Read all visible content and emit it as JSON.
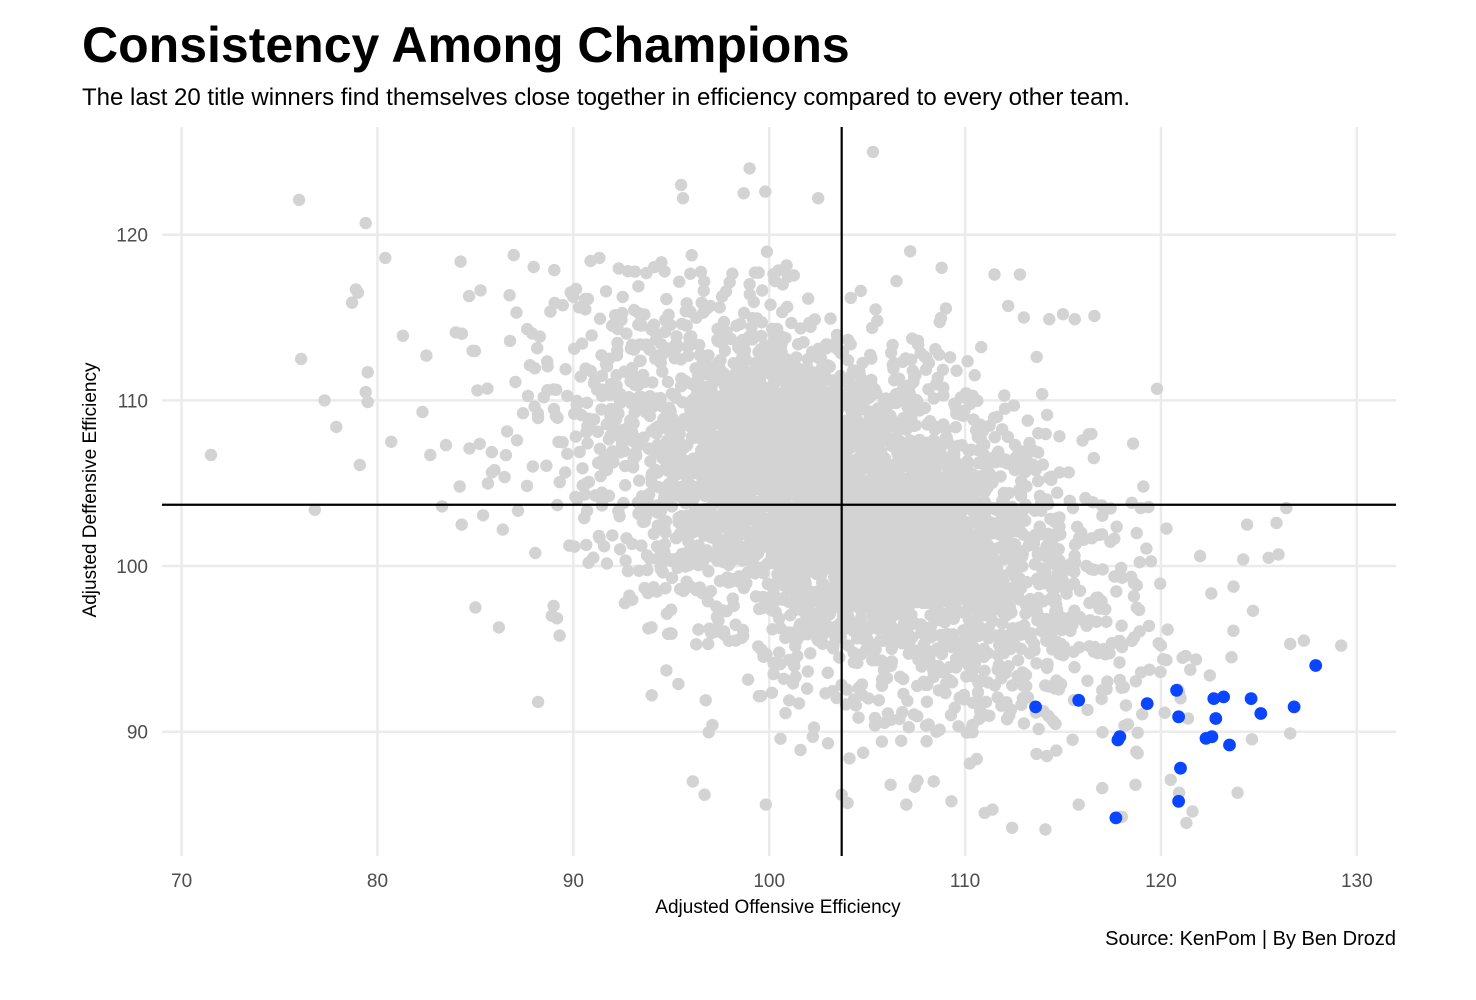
{
  "chart_data": {
    "type": "scatter",
    "title": "Consistency Among Champions",
    "subtitle": "The last 20 title winners find themselves close together in efficiency compared to every other team.",
    "caption": "Source: KenPom | By Ben Drozd",
    "xlabel": "Adjusted Offensive Efficiency",
    "ylabel": "Adjusted Deffensive Efficiency",
    "xlim": [
      69,
      132
    ],
    "ylim": [
      82.5,
      126.5
    ],
    "xticks": [
      70,
      80,
      90,
      100,
      110,
      120,
      130
    ],
    "yticks": [
      90,
      100,
      110,
      120
    ],
    "xtick_labels": [
      "70",
      "80",
      "90",
      "100",
      "110",
      "120",
      "130"
    ],
    "ytick_labels": [
      "90",
      "100",
      "110",
      "120"
    ],
    "reference_lines": {
      "vline_x": 103.7,
      "hline_y": 103.7
    },
    "grid": true,
    "legend": "none",
    "colors": {
      "other_teams": "#d3d3d3",
      "champions": "#0a46ff",
      "reference_lines": "#000000",
      "grid": "#ebebeb"
    },
    "series": [
      {
        "points": [
          [
            71.5,
            106.7
          ],
          [
            76.0,
            122.1
          ],
          [
            76.1,
            112.5
          ],
          [
            76.8,
            103.4
          ],
          [
            77.3,
            110.0
          ],
          [
            77.9,
            108.4
          ],
          [
            78.7,
            115.9
          ],
          [
            78.9,
            116.7
          ],
          [
            79.0,
            116.5
          ],
          [
            79.1,
            106.1
          ],
          [
            79.4,
            120.7
          ],
          [
            79.5,
            111.7
          ],
          [
            79.4,
            110.5
          ],
          [
            79.5,
            109.9
          ],
          [
            80.4,
            118.6
          ],
          [
            80.7,
            107.5
          ],
          [
            81.3,
            113.9
          ],
          [
            82.3,
            109.3
          ],
          [
            82.5,
            112.7
          ],
          [
            82.7,
            106.7
          ],
          [
            83.3,
            103.6
          ],
          [
            83.5,
            107.3
          ],
          [
            84.0,
            114.1
          ],
          [
            84.3,
            102.5
          ],
          [
            84.2,
            104.8
          ],
          [
            84.7,
            107.1
          ],
          [
            85.1,
            110.6
          ],
          [
            85.0,
            97.5
          ],
          [
            86.2,
            96.3
          ],
          [
            86.4,
            102.2
          ],
          [
            87.1,
            115.3
          ],
          [
            88.2,
            91.8
          ],
          [
            88.9,
            97.0
          ],
          [
            89.3,
            95.8
          ],
          [
            94.0,
            92.2
          ],
          [
            95.5,
            123.0
          ],
          [
            95.6,
            122.2
          ],
          [
            96.1,
            87.0
          ],
          [
            96.7,
            86.2
          ],
          [
            97.1,
            90.4
          ],
          [
            99.8,
            122.6
          ],
          [
            101.6,
            88.9
          ],
          [
            103.0,
            89.3
          ],
          [
            103.7,
            86.2
          ],
          [
            104.0,
            85.7
          ],
          [
            105.3,
            125.0
          ],
          [
            106.2,
            86.8
          ],
          [
            107.0,
            85.6
          ],
          [
            108.4,
            87.0
          ],
          [
            109.3,
            85.8
          ],
          [
            111.0,
            85.1
          ],
          [
            111.4,
            85.3
          ],
          [
            112.4,
            84.2
          ],
          [
            114.1,
            84.1
          ],
          [
            115.8,
            85.6
          ],
          [
            117.0,
            86.6
          ],
          [
            118.7,
            86.8
          ],
          [
            119.1,
            104.8
          ],
          [
            120.5,
            87.1
          ],
          [
            121.3,
            84.5
          ],
          [
            119.8,
            110.7
          ],
          [
            115.0,
            115.2
          ],
          [
            112.2,
            115.7
          ],
          [
            113.0,
            115.0
          ],
          [
            114.3,
            114.9
          ],
          [
            115.6,
            114.9
          ],
          [
            116.6,
            115.1
          ],
          [
            108.8,
            118.0
          ],
          [
            111.5,
            117.6
          ],
          [
            112.8,
            117.6
          ],
          [
            106.5,
            117.2
          ],
          [
            107.2,
            119.0
          ],
          [
            99.0,
            124.0
          ],
          [
            98.7,
            122.5
          ],
          [
            102.5,
            122.2
          ],
          [
            124.4,
            102.5
          ],
          [
            125.9,
            102.6
          ],
          [
            126.4,
            103.5
          ],
          [
            125.5,
            100.5
          ],
          [
            126.0,
            100.7
          ],
          [
            126.6,
            95.3
          ],
          [
            127.3,
            95.5
          ],
          [
            129.2,
            95.2
          ],
          [
            126.6,
            89.9
          ],
          [
            124.2,
            100.4
          ],
          [
            124.7,
            97.3
          ],
          [
            123.7,
            96.1
          ],
          [
            122.0,
            100.6
          ],
          [
            123.6,
            94.5
          ]
        ]
      },
      {
        "points": [
          [
            113.6,
            91.5
          ],
          [
            115.8,
            91.9
          ],
          [
            117.9,
            89.7
          ],
          [
            117.8,
            89.5
          ],
          [
            117.7,
            84.8
          ],
          [
            119.3,
            91.7
          ],
          [
            120.8,
            92.5
          ],
          [
            120.9,
            90.9
          ],
          [
            121.0,
            87.8
          ],
          [
            120.9,
            85.8
          ],
          [
            122.3,
            89.6
          ],
          [
            122.6,
            89.7
          ],
          [
            122.7,
            92.0
          ],
          [
            122.8,
            90.8
          ],
          [
            123.2,
            92.1
          ],
          [
            123.5,
            89.2
          ],
          [
            124.6,
            92.0
          ],
          [
            125.1,
            91.1
          ],
          [
            126.8,
            91.5
          ],
          [
            127.9,
            94.0
          ]
        ]
      }
    ]
  }
}
